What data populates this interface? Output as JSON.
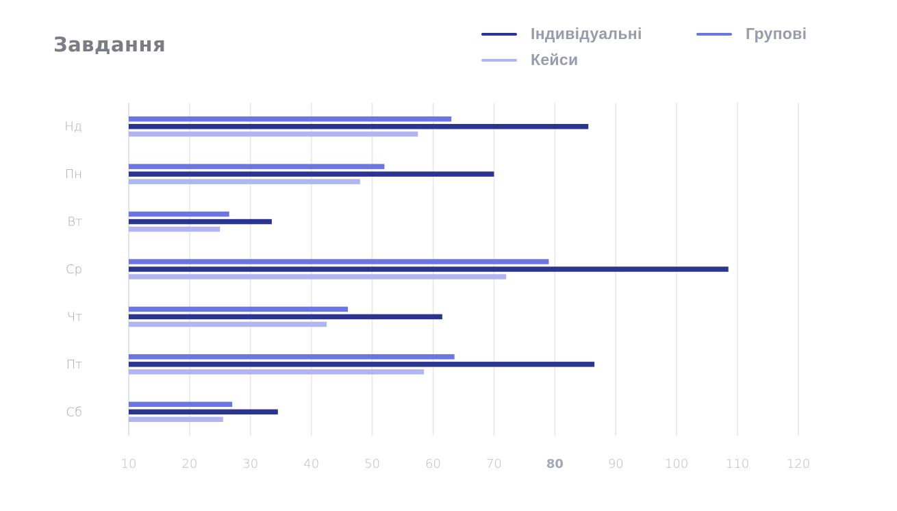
{
  "title": "Завдання",
  "legend": [
    {
      "label": "Індивідуальні",
      "color": "#2b3590"
    },
    {
      "label": "Групові",
      "color": "#6c76e2"
    },
    {
      "label": "Кейси",
      "color": "#b1b6f2"
    }
  ],
  "chart_data": {
    "type": "bar",
    "orientation": "horizontal",
    "title": "Завдання",
    "categories": [
      "Нд",
      "Пн",
      "Вт",
      "Ср",
      "Чт",
      "Пт",
      "Сб"
    ],
    "series": [
      {
        "name": "Групові",
        "color": "#6c76e2",
        "values": [
          63,
          52,
          26.5,
          79,
          46,
          63.5,
          27
        ]
      },
      {
        "name": "Індивідуальні",
        "color": "#2b3590",
        "values": [
          85.5,
          70,
          33.5,
          108.5,
          61.5,
          86.5,
          34.5
        ]
      },
      {
        "name": "Кейси",
        "color": "#b1b6f2",
        "values": [
          57.5,
          48,
          25,
          72,
          42.5,
          58.5,
          25.5
        ]
      }
    ],
    "xlim": [
      10,
      120
    ],
    "xticks": [
      "10",
      "20",
      "30",
      "40",
      "50",
      "60",
      "70",
      "80",
      "90",
      "100",
      "110",
      "120"
    ],
    "highlighted_tick": "80",
    "grid": true,
    "legend_position": "top-right"
  }
}
